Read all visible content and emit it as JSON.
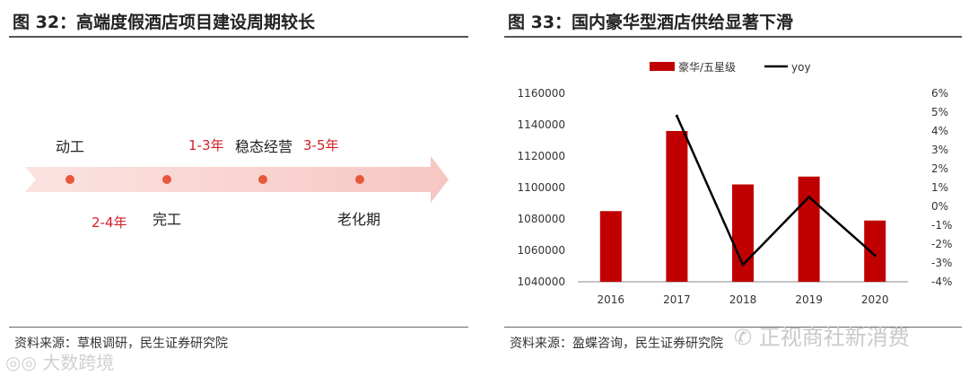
{
  "left": {
    "title": "图 32：高端度假酒店项目建设周期较长",
    "source": "资料来源：草根调研，民生证券研究院",
    "timeline": {
      "stages": [
        "动工",
        "完工",
        "稳态经营",
        "老化期"
      ],
      "durations": [
        "2-4年",
        "1-3年",
        "3-5年"
      ]
    }
  },
  "right": {
    "title": "图 33：国内豪华型酒店供给显著下滑",
    "source": "资料来源：盈蝶咨询，民生证券研究院"
  },
  "watermark": {
    "left": "大数跨境",
    "right": "正视商社新消费"
  },
  "chart_data": {
    "type": "bar",
    "categories": [
      "2016",
      "2017",
      "2018",
      "2019",
      "2020"
    ],
    "series": [
      {
        "name": "豪华/五星级",
        "type": "bar",
        "axis": "left",
        "color": "#c00000",
        "values": [
          1085000,
          1136000,
          1102000,
          1107000,
          1079000
        ]
      },
      {
        "name": "yoy",
        "type": "line",
        "axis": "right",
        "color": "#000000",
        "values": [
          null,
          4.8,
          -3.1,
          0.5,
          -2.6
        ]
      }
    ],
    "y_left": {
      "min": 1040000,
      "max": 1160000,
      "step": 20000,
      "ticks": [
        "1040000",
        "1060000",
        "1080000",
        "1100000",
        "1120000",
        "1140000",
        "1160000"
      ]
    },
    "y_right": {
      "min": -4,
      "max": 6,
      "step": 1,
      "ticks": [
        "-4%",
        "-3%",
        "-2%",
        "-1%",
        "0%",
        "1%",
        "2%",
        "3%",
        "4%",
        "5%",
        "6%"
      ]
    },
    "legend_position": "top",
    "grid": false
  }
}
